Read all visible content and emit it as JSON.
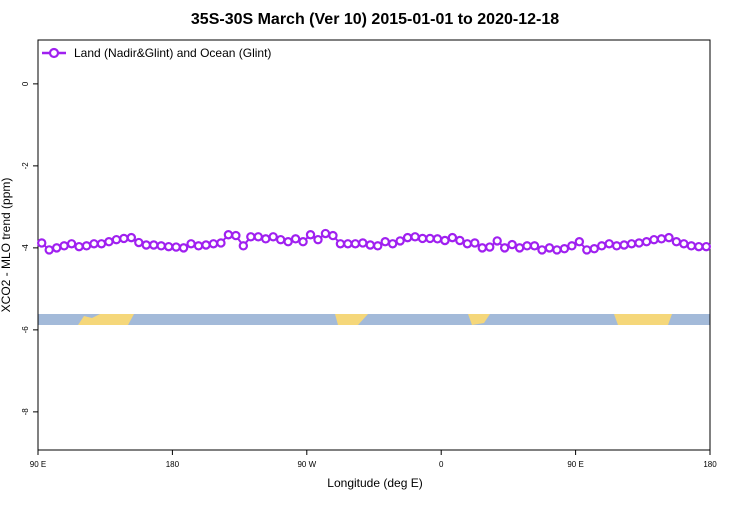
{
  "chart_data": {
    "type": "line",
    "title": "35S-30S March (Ver 10)   2015-01-01 to 2020-12-18",
    "x_label": "Longitude (deg E)",
    "y_label": "XCO2 - MLO trend (ppm)",
    "xlim": [
      90,
      540
    ],
    "xticks": [
      {
        "value": 90,
        "label": "90 E"
      },
      {
        "value": 180,
        "label": "180"
      },
      {
        "value": 270,
        "label": "90 W"
      },
      {
        "value": 360,
        "label": "0"
      },
      {
        "value": 450,
        "label": "90 E"
      },
      {
        "value": 540,
        "label": "180"
      }
    ],
    "ylim": [
      -8.93,
      1.07
    ],
    "yticks": [
      0,
      -2,
      -4,
      -6,
      -8
    ],
    "legend": "top-left",
    "x": [
      92.5,
      97.5,
      102.5,
      107.5,
      112.5,
      117.5,
      122.5,
      127.5,
      132.5,
      137.5,
      142.5,
      147.5,
      152.5,
      157.5,
      162.5,
      167.5,
      172.5,
      177.5,
      182.5,
      187.5,
      192.5,
      197.5,
      202.5,
      207.5,
      212.5,
      217.5,
      222.5,
      227.5,
      232.5,
      237.5,
      242.5,
      247.5,
      252.5,
      257.5,
      262.5,
      267.5,
      272.5,
      277.5,
      282.5,
      287.5,
      292.5,
      297.5,
      302.5,
      307.5,
      312.5,
      317.5,
      322.5,
      327.5,
      332.5,
      337.5,
      342.5,
      347.5,
      352.5,
      357.5,
      362.5,
      367.5,
      372.5,
      377.5,
      382.5,
      387.5,
      392.5,
      397.5,
      402.5,
      407.5,
      412.5,
      417.5,
      422.5,
      427.5,
      432.5,
      437.5,
      442.5,
      447.5,
      452.5,
      457.5,
      462.5,
      467.5,
      472.5,
      477.5,
      482.5,
      487.5,
      492.5,
      497.5,
      502.5,
      507.5,
      512.5,
      517.5,
      522.5,
      527.5,
      532.5,
      537.5
    ],
    "series": [
      {
        "name": "Land (Nadir&Glint) and Ocean (Glint)",
        "color": "#a020f0",
        "values": [
          -3.88,
          -4.05,
          -4.0,
          -3.95,
          -3.9,
          -3.97,
          -3.95,
          -3.9,
          -3.9,
          -3.85,
          -3.8,
          -3.77,
          -3.75,
          -3.87,
          -3.93,
          -3.93,
          -3.95,
          -3.97,
          -3.98,
          -4.0,
          -3.9,
          -3.95,
          -3.93,
          -3.9,
          -3.88,
          -3.68,
          -3.7,
          -3.95,
          -3.73,
          -3.73,
          -3.78,
          -3.73,
          -3.8,
          -3.85,
          -3.78,
          -3.85,
          -3.68,
          -3.8,
          -3.65,
          -3.7,
          -3.9,
          -3.9,
          -3.9,
          -3.88,
          -3.93,
          -3.95,
          -3.85,
          -3.9,
          -3.83,
          -3.75,
          -3.73,
          -3.77,
          -3.77,
          -3.78,
          -3.82,
          -3.75,
          -3.82,
          -3.9,
          -3.88,
          -4.0,
          -3.98,
          -3.83,
          -4.0,
          -3.92,
          -4.0,
          -3.95,
          -3.95,
          -4.05,
          -4.0,
          -4.05,
          -4.02,
          -3.95,
          -3.85,
          -4.05,
          -4.02,
          -3.95,
          -3.9,
          -3.95,
          -3.93,
          -3.9,
          -3.88,
          -3.85,
          -3.8,
          -3.78,
          -3.75,
          -3.85,
          -3.9,
          -3.95,
          -3.97,
          -3.97
        ]
      }
    ]
  }
}
